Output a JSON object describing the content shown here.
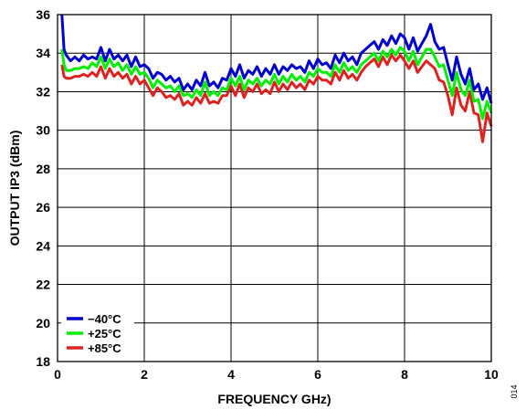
{
  "chart_data": {
    "type": "line",
    "title": "",
    "xlabel": "FREQUENCY GHz)",
    "ylabel": "OUTPUT IP3 (dBm)",
    "xlim": [
      0,
      10
    ],
    "ylim": [
      18,
      36
    ],
    "x_ticks": [
      0,
      2,
      4,
      6,
      8,
      10
    ],
    "y_ticks": [
      18,
      20,
      22,
      24,
      26,
      28,
      30,
      32,
      34,
      36
    ],
    "grid": true,
    "legend_position": "bottom-left",
    "figure_code": "014",
    "x": [
      0.1,
      0.15,
      0.2,
      0.3,
      0.4,
      0.5,
      0.6,
      0.7,
      0.8,
      0.9,
      1.0,
      1.1,
      1.2,
      1.3,
      1.4,
      1.5,
      1.6,
      1.7,
      1.8,
      1.9,
      2.0,
      2.1,
      2.2,
      2.3,
      2.4,
      2.5,
      2.6,
      2.7,
      2.8,
      2.9,
      3.0,
      3.1,
      3.2,
      3.3,
      3.4,
      3.5,
      3.6,
      3.7,
      3.8,
      3.9,
      4.0,
      4.1,
      4.2,
      4.3,
      4.4,
      4.5,
      4.6,
      4.7,
      4.8,
      4.9,
      5.0,
      5.1,
      5.2,
      5.3,
      5.4,
      5.5,
      5.6,
      5.7,
      5.8,
      5.9,
      6.0,
      6.1,
      6.2,
      6.3,
      6.4,
      6.5,
      6.6,
      6.7,
      6.8,
      6.9,
      7.0,
      7.1,
      7.2,
      7.3,
      7.4,
      7.5,
      7.6,
      7.7,
      7.8,
      7.9,
      8.0,
      8.1,
      8.2,
      8.3,
      8.4,
      8.5,
      8.6,
      8.7,
      8.8,
      8.9,
      9.0,
      9.1,
      9.2,
      9.3,
      9.4,
      9.5,
      9.6,
      9.7,
      9.8,
      9.9,
      10.0
    ],
    "series": [
      {
        "name": "−40°C",
        "color": "#0000cc",
        "values": [
          36.0,
          34.2,
          33.9,
          33.6,
          33.8,
          33.6,
          33.9,
          33.7,
          33.8,
          33.7,
          34.3,
          33.6,
          34.2,
          33.7,
          33.9,
          33.6,
          33.9,
          33.3,
          33.8,
          33.3,
          33.4,
          33.2,
          32.7,
          33.0,
          32.9,
          32.6,
          32.8,
          32.5,
          32.7,
          32.1,
          32.4,
          32.1,
          32.6,
          32.3,
          33.0,
          32.3,
          32.5,
          32.2,
          32.7,
          32.6,
          33.2,
          32.8,
          33.4,
          32.7,
          33.1,
          32.9,
          33.3,
          32.8,
          33.2,
          32.9,
          33.4,
          32.9,
          33.3,
          33.1,
          33.4,
          33.2,
          33.3,
          33.0,
          33.6,
          33.2,
          33.7,
          33.4,
          33.5,
          33.2,
          33.9,
          33.5,
          34.0,
          33.6,
          33.8,
          33.4,
          34.0,
          34.2,
          34.4,
          34.6,
          34.2,
          34.7,
          34.4,
          34.9,
          34.5,
          35.0,
          34.8,
          34.2,
          34.8,
          34.1,
          34.5,
          34.9,
          35.5,
          34.6,
          34.2,
          34.3,
          33.4,
          32.6,
          33.8,
          32.9,
          32.4,
          33.2,
          32.1,
          32.4,
          31.6,
          32.2,
          31.4
        ]
      },
      {
        "name": "+25°C",
        "color": "#00ee00",
        "values": [
          34.2,
          33.4,
          33.1,
          33.1,
          33.2,
          33.2,
          33.3,
          33.2,
          33.5,
          33.3,
          33.8,
          33.2,
          33.7,
          33.3,
          33.5,
          33.1,
          33.4,
          32.9,
          33.3,
          32.9,
          33.0,
          32.7,
          32.2,
          32.6,
          32.4,
          32.2,
          32.3,
          32.0,
          32.3,
          31.8,
          31.9,
          31.7,
          32.1,
          31.8,
          32.5,
          31.8,
          32.0,
          31.8,
          32.2,
          32.1,
          32.7,
          32.3,
          32.8,
          32.1,
          32.6,
          32.4,
          32.7,
          32.3,
          32.6,
          32.4,
          32.9,
          32.4,
          32.8,
          32.5,
          32.9,
          32.6,
          32.8,
          32.5,
          33.0,
          32.8,
          33.2,
          33.0,
          33.0,
          32.8,
          33.4,
          33.0,
          33.5,
          33.1,
          33.3,
          33.0,
          33.4,
          33.6,
          33.8,
          34.0,
          33.6,
          34.1,
          33.8,
          34.2,
          33.9,
          34.3,
          34.1,
          33.6,
          34.1,
          33.4,
          33.8,
          34.2,
          34.2,
          33.8,
          33.3,
          33.4,
          32.6,
          31.8,
          33.0,
          32.1,
          31.8,
          32.6,
          31.5,
          31.6,
          30.6,
          31.5,
          30.9
        ]
      },
      {
        "name": "+85°C",
        "color": "#dd2222",
        "values": [
          33.4,
          32.8,
          32.7,
          32.7,
          32.8,
          32.8,
          32.9,
          32.8,
          33.0,
          32.8,
          33.3,
          32.7,
          33.2,
          32.8,
          33.0,
          32.7,
          32.9,
          32.4,
          32.8,
          32.4,
          32.6,
          32.2,
          31.8,
          32.2,
          32.0,
          31.7,
          31.8,
          31.6,
          31.9,
          31.3,
          31.5,
          31.3,
          31.7,
          31.4,
          31.9,
          31.4,
          31.5,
          31.4,
          31.8,
          31.8,
          32.3,
          31.8,
          32.4,
          31.7,
          32.2,
          32.0,
          32.4,
          31.9,
          32.1,
          31.9,
          32.5,
          32.0,
          32.4,
          32.1,
          32.5,
          32.2,
          32.4,
          32.1,
          32.6,
          32.4,
          32.8,
          32.6,
          32.6,
          32.4,
          33.0,
          32.6,
          33.1,
          32.7,
          32.9,
          32.6,
          33.0,
          33.3,
          33.5,
          33.7,
          33.3,
          33.8,
          33.4,
          33.9,
          33.6,
          33.9,
          33.6,
          33.2,
          33.6,
          33.0,
          33.3,
          33.6,
          33.4,
          33.2,
          32.6,
          32.5,
          31.8,
          30.8,
          32.2,
          31.3,
          31.0,
          32.0,
          30.9,
          30.8,
          29.4,
          30.9,
          30.2
        ]
      }
    ]
  }
}
